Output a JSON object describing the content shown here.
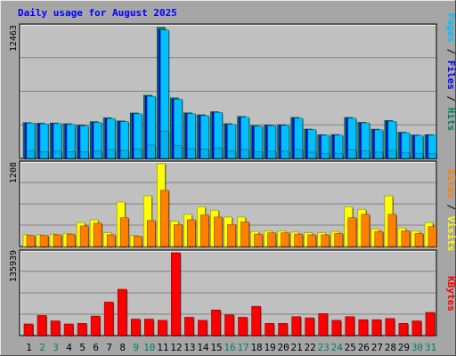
{
  "chart_data": [
    {
      "type": "bar",
      "title": "Daily usage for August 2025",
      "categories": [
        "1",
        "2",
        "3",
        "4",
        "5",
        "6",
        "7",
        "8",
        "9",
        "10",
        "11",
        "12",
        "13",
        "14",
        "15",
        "16",
        "17",
        "18",
        "19",
        "20",
        "21",
        "22",
        "23",
        "24",
        "25",
        "26",
        "27",
        "28",
        "29",
        "30",
        "31"
      ],
      "weekend_days": [
        "2",
        "3",
        "9",
        "10",
        "16",
        "17",
        "23",
        "24",
        "30",
        "31"
      ],
      "ytick": "12463",
      "ylim": [
        0,
        12463
      ],
      "ylabel_parts": [
        "Pages",
        "Files",
        "Hits"
      ],
      "series": [
        {
          "name": "Hits",
          "values": [
            3390,
            3340,
            3350,
            3290,
            3150,
            3480,
            3850,
            3550,
            4300,
            5980,
            12400,
            5730,
            4310,
            4130,
            4420,
            3290,
            3970,
            3100,
            3170,
            3190,
            3880,
            2780,
            2240,
            2260,
            3880,
            3420,
            2770,
            3590,
            2480,
            2220,
            2250
          ]
        },
        {
          "name": "Files",
          "values": [
            3340,
            3260,
            3290,
            3210,
            3070,
            3390,
            3770,
            3480,
            4220,
            5880,
            12150,
            5600,
            4230,
            4040,
            4350,
            3220,
            3890,
            3050,
            3100,
            3120,
            3800,
            2720,
            2190,
            2200,
            3800,
            3350,
            2710,
            3510,
            2420,
            2170,
            2200
          ]
        },
        {
          "name": "Pages",
          "values": [
            700,
            650,
            680,
            640,
            610,
            720,
            830,
            760,
            900,
            1260,
            2600,
            1210,
            910,
            870,
            950,
            690,
            830,
            650,
            670,
            680,
            820,
            590,
            470,
            480,
            820,
            720,
            590,
            760,
            520,
            470,
            470
          ]
        }
      ]
    },
    {
      "type": "bar",
      "ytick": "1208",
      "ylim": [
        0,
        1208
      ],
      "ylabel_parts": [
        "Sites",
        "Visits"
      ],
      "series": [
        {
          "name": "Visits",
          "values": [
            170,
            170,
            180,
            190,
            350,
            390,
            200,
            650,
            160,
            740,
            1208,
            370,
            470,
            580,
            530,
            430,
            430,
            220,
            230,
            230,
            210,
            200,
            200,
            220,
            580,
            540,
            260,
            740,
            270,
            230,
            350
          ]
        },
        {
          "name": "Sites",
          "values": [
            160,
            160,
            170,
            180,
            300,
            340,
            170,
            420,
            150,
            380,
            820,
            320,
            390,
            460,
            430,
            320,
            360,
            180,
            200,
            200,
            180,
            170,
            170,
            190,
            420,
            470,
            220,
            470,
            230,
            190,
            290
          ]
        }
      ]
    },
    {
      "type": "bar",
      "ytick": "135939",
      "ylim": [
        0,
        135939
      ],
      "ylabel_parts": [
        "KBytes"
      ],
      "series": [
        {
          "name": "KBytes",
          "values": [
            19000,
            33000,
            24000,
            19000,
            20000,
            32000,
            55000,
            76000,
            27000,
            27000,
            25000,
            136000,
            30000,
            25000,
            42000,
            34000,
            30000,
            48000,
            20000,
            20000,
            31000,
            29000,
            36000,
            25000,
            31000,
            26000,
            26000,
            28000,
            20000,
            24000,
            38000
          ]
        }
      ]
    }
  ],
  "colors": {
    "hits": "#00805c",
    "files": "#0000ff",
    "pages": "#00c0ff",
    "visits": "#ffff00",
    "sites": "#ff8000",
    "kbytes": "#ff0000",
    "title": "#0000ff",
    "weekday": "#000000",
    "weekend": "#00805c",
    "panel_bg": "#c0c0c0",
    "frame": "#a0a0a0"
  }
}
